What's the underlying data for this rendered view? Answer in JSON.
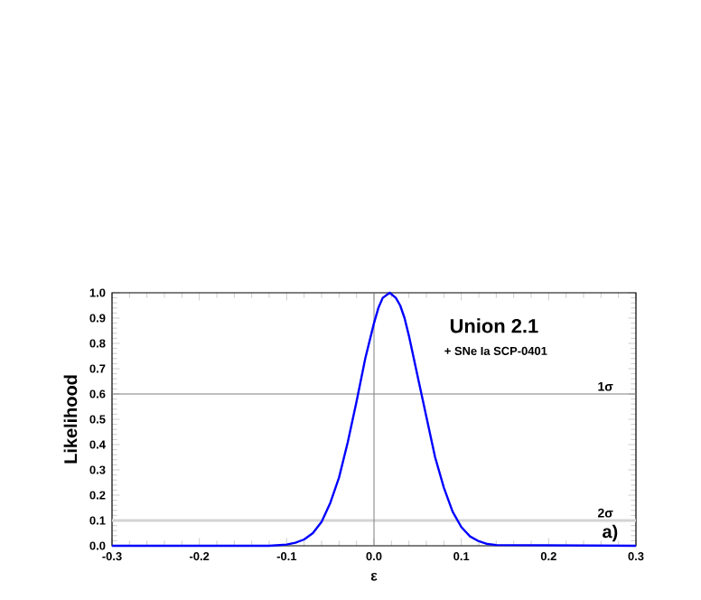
{
  "chart_data": {
    "type": "line",
    "xlabel": "ε",
    "ylabel": "Likelihood",
    "annotations": [
      "Union 2.1",
      "+ SNe Ia SCP-0401",
      "a)"
    ],
    "x": [
      -0.3,
      -0.12,
      -0.1,
      -0.09,
      -0.08,
      -0.07,
      -0.06,
      -0.05,
      -0.04,
      -0.03,
      -0.02,
      -0.01,
      0,
      0.005,
      0.01,
      0.018,
      0.025,
      0.03,
      0.035,
      0.04,
      0.05,
      0.06,
      0.07,
      0.08,
      0.09,
      0.1,
      0.11,
      0.12,
      0.13,
      0.14,
      0.3
    ],
    "series": [
      {
        "color": "#0000ff",
        "values": [
          0,
          0,
          0.005,
          0.012,
          0.025,
          0.05,
          0.095,
          0.17,
          0.27,
          0.41,
          0.57,
          0.74,
          0.88,
          0.94,
          0.98,
          1,
          0.98,
          0.95,
          0.9,
          0.83,
          0.67,
          0.51,
          0.35,
          0.23,
          0.135,
          0.074,
          0.037,
          0.018,
          0.007,
          0.003,
          0
        ]
      }
    ],
    "xlim": [
      -0.3,
      0.3
    ],
    "ylim": [
      0,
      1
    ],
    "xticks": [
      -0.3,
      -0.2,
      -0.1,
      {
        "value": 0,
        "label": "0.0"
      },
      0.1,
      0.2,
      0.3
    ],
    "yticks": [
      {
        "value": 0,
        "label": "0.0"
      },
      0.1,
      0.2,
      0.3,
      0.4,
      0.5,
      0.6,
      0.7,
      0.8,
      0.9,
      {
        "value": 1,
        "label": "1.0"
      }
    ],
    "ref_lines": [
      {
        "axis": "y",
        "value": 0.6,
        "label": "1σ",
        "color": "#808080"
      },
      {
        "axis": "y",
        "value": 0.1,
        "label": "2σ",
        "color": "#d3d3d3"
      },
      {
        "axis": "x",
        "value": 0,
        "color": "#808080"
      }
    ],
    "marker": "none",
    "line_style": "solid"
  }
}
